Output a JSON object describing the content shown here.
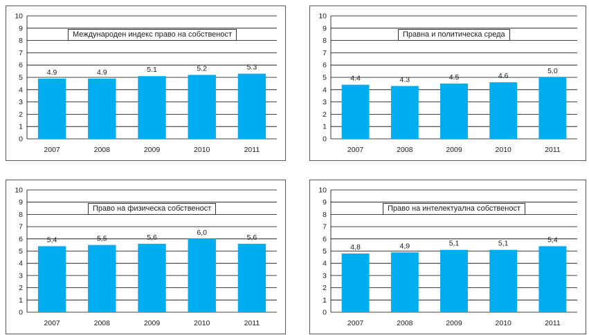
{
  "chart_data": [
    {
      "type": "bar",
      "title": "Международен индекс право на собственост",
      "categories": [
        "2007",
        "2008",
        "2009",
        "2010",
        "2011"
      ],
      "values": [
        4.9,
        4.9,
        5.1,
        5.2,
        5.3
      ],
      "value_labels": [
        "4.9",
        "4.9",
        "5.1",
        "5.2",
        "5.3"
      ],
      "ylim": [
        0,
        10
      ],
      "yticks": [
        "0",
        "1",
        "2",
        "3",
        "4",
        "5",
        "6",
        "7",
        "8",
        "9",
        "10"
      ],
      "grid": true,
      "bar_color": "#00aeef"
    },
    {
      "type": "bar",
      "title": "Правна и политическа среда",
      "categories": [
        "2007",
        "2008",
        "2009",
        "2010",
        "2011"
      ],
      "values": [
        4.4,
        4.3,
        4.5,
        4.6,
        5.0
      ],
      "value_labels": [
        "4.4",
        "4.3",
        "4.5",
        "4.6",
        "5.0"
      ],
      "ylim": [
        0,
        10
      ],
      "yticks": [
        "0",
        "1",
        "2",
        "3",
        "4",
        "5",
        "6",
        "7",
        "8",
        "9",
        "10"
      ],
      "grid": true,
      "bar_color": "#00aeef"
    },
    {
      "type": "bar",
      "title": "Право на физическа собственост",
      "categories": [
        "2007",
        "2008",
        "2009",
        "2010",
        "2011"
      ],
      "values": [
        5.4,
        5.5,
        5.6,
        6.0,
        5.6
      ],
      "value_labels": [
        "5,4",
        "5,5",
        "5,6",
        "6,0",
        "5,6"
      ],
      "ylim": [
        0,
        10
      ],
      "yticks": [
        "0",
        "1",
        "2",
        "3",
        "4",
        "5",
        "6",
        "7",
        "8",
        "9",
        "10"
      ],
      "grid": true,
      "bar_color": "#00aeef"
    },
    {
      "type": "bar",
      "title": "Право на интелектуална собственост",
      "categories": [
        "2007",
        "2008",
        "2009",
        "2010",
        "2011"
      ],
      "values": [
        4.8,
        4.9,
        5.1,
        5.1,
        5.4
      ],
      "value_labels": [
        "4,8",
        "4,9",
        "5,1",
        "5,1",
        "5,4"
      ],
      "ylim": [
        0,
        10
      ],
      "yticks": [
        "0",
        "1",
        "2",
        "3",
        "4",
        "5",
        "6",
        "7",
        "8",
        "9",
        "10"
      ],
      "grid": true,
      "bar_color": "#00aeef"
    }
  ]
}
